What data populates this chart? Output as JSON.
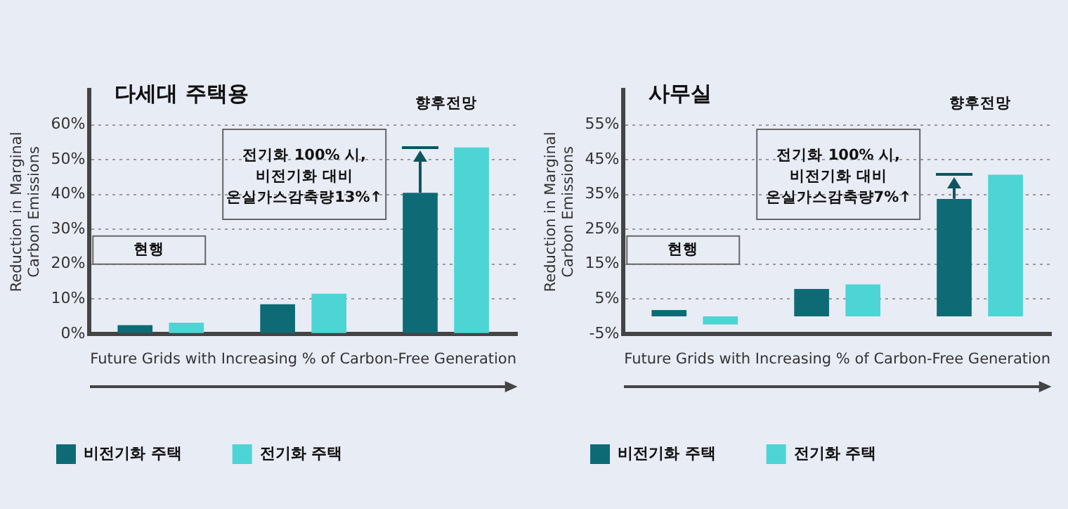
{
  "chart_data": [
    {
      "type": "bar",
      "title": "다세대 주택용",
      "xlabel": "Future Grids with Increasing % of Carbon-Free Generation",
      "ylabel": "Reduction in Marginal Carbon Emissions",
      "categories": [
        null,
        null,
        null
      ],
      "series": [
        {
          "name": "비전기화 주택",
          "color": "#0e6b75",
          "values": [
            2.5,
            8.5,
            40.5
          ]
        },
        {
          "name": "전기화 주택",
          "color": "#4dd4d4",
          "values": [
            3.2,
            11.5,
            53.5
          ]
        }
      ],
      "ylim": [
        0,
        70
      ],
      "yticks": [
        {
          "value": 0,
          "label": "0%"
        },
        {
          "value": 10,
          "label": "10%"
        },
        {
          "value": 20,
          "label": "20%"
        },
        {
          "value": 30,
          "label": "30%"
        },
        {
          "value": 40,
          "label": "40%"
        },
        {
          "value": 50,
          "label": "50%"
        },
        {
          "value": 60,
          "label": "60%"
        }
      ],
      "grid": "y",
      "legend": "bottom",
      "annotations": [
        "현행",
        "향후전망",
        "전기화 100% 시,\n비전기화 대비\n온실가스감축량13%↑"
      ]
    },
    {
      "type": "bar",
      "title": "사무실",
      "xlabel": "Future Grids with Increasing % of Carbon-Free Generation",
      "ylabel": "Reduction in Marginal Carbon Emissions",
      "categories": [
        null,
        null,
        null
      ],
      "series": [
        {
          "name": "비전기화 주택",
          "color": "#0e6b75",
          "values": [
            1.8,
            7.9,
            33.7
          ]
        },
        {
          "name": "전기화 주택",
          "color": "#4dd4d4",
          "values": [
            -2.3,
            9.2,
            40.7
          ]
        }
      ],
      "ylim": [
        -5,
        65
      ],
      "yticks": [
        {
          "value": -5,
          "label": "-5%"
        },
        {
          "value": 5,
          "label": "5%"
        },
        {
          "value": 15,
          "label": "15%"
        },
        {
          "value": 25,
          "label": "25%"
        },
        {
          "value": 35,
          "label": "35%"
        },
        {
          "value": 45,
          "label": "45%"
        },
        {
          "value": 55,
          "label": "55%"
        }
      ],
      "grid": "y",
      "legend": "bottom",
      "annotations": [
        "현행",
        "향후전망",
        "전기화 100% 시,\n비전기화 대비\n온실가스감축량7%↑"
      ]
    }
  ]
}
